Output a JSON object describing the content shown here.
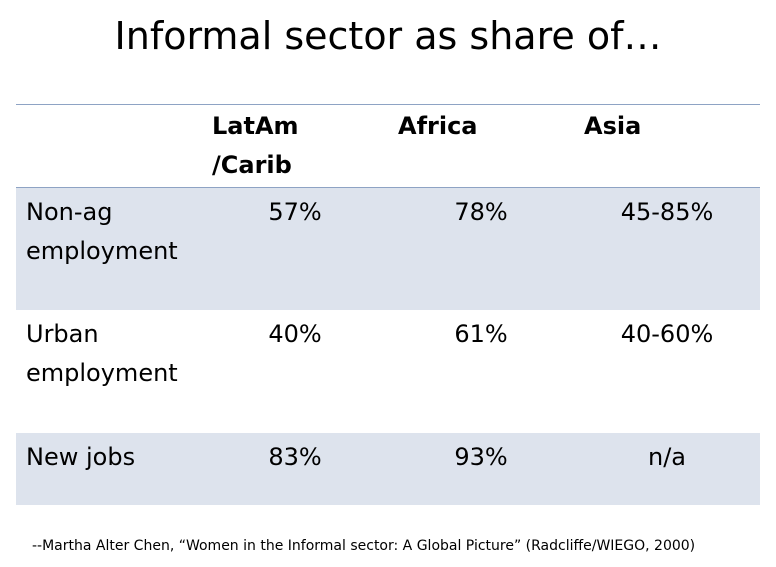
{
  "title": "Informal sector as share of…",
  "table": {
    "columns": [
      [
        "LatAm",
        "/Carib"
      ],
      [
        "Africa"
      ],
      [
        "Asia"
      ]
    ],
    "rows": [
      {
        "label": [
          "Non-ag",
          "employment"
        ],
        "cells": [
          "57%",
          "78%",
          "45-85%"
        ]
      },
      {
        "label": [
          "Urban",
          "employment"
        ],
        "cells": [
          "40%",
          "61%",
          "40-60%"
        ]
      },
      {
        "label": [
          "New jobs"
        ],
        "cells": [
          "83%",
          "93%",
          "n/a"
        ]
      }
    ]
  },
  "citation": "--Martha Alter Chen, “Women in the Informal sector: A Global Picture” (Radcliffe/WIEGO, 2000)"
}
